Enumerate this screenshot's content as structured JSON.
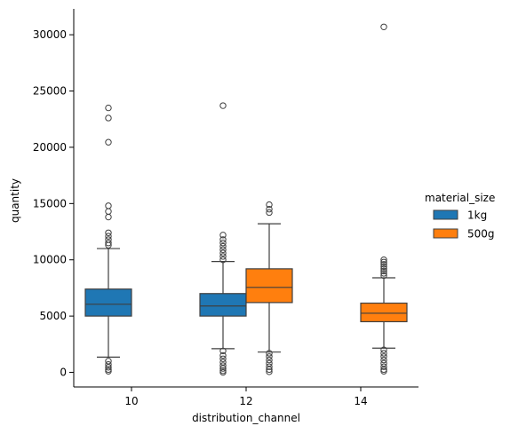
{
  "chart_data": {
    "type": "box",
    "xlabel": "distribution_channel",
    "ylabel": "quantity",
    "categories": [
      "10",
      "12",
      "14"
    ],
    "ylim": [
      -1300,
      32300
    ],
    "yticks": [
      0,
      5000,
      10000,
      15000,
      20000,
      25000,
      30000
    ],
    "grid": false,
    "legend": {
      "title": "material_size",
      "placement": "right"
    },
    "series": [
      {
        "name": "1kg",
        "color": "#1f77b4",
        "boxes": [
          {
            "category": "10",
            "whisker_low": 1350,
            "q1": 5000,
            "median": 6050,
            "q3": 7400,
            "whisker_high": 11000,
            "outliers": [
              23500,
              22600,
              20450,
              14800,
              14300,
              13800,
              12400,
              12100,
              11800,
              11500,
              11300,
              1000,
              700,
              450,
              250,
              100
            ]
          },
          {
            "category": "12",
            "whisker_low": 2100,
            "q1": 5000,
            "median": 5900,
            "q3": 7000,
            "whisker_high": 9850,
            "outliers": [
              23700,
              12200,
              11800,
              11500,
              11200,
              10900,
              10600,
              10300,
              10000,
              1900,
              1500,
              1200,
              900,
              600,
              350,
              150,
              0
            ]
          }
        ]
      },
      {
        "name": "500g",
        "color": "#ff7f0e",
        "boxes": [
          {
            "category": "12",
            "whisker_low": 1800,
            "q1": 6200,
            "median": 7550,
            "q3": 9200,
            "whisker_high": 13200,
            "outliers": [
              14900,
              14500,
              14200,
              1700,
              1400,
              1100,
              800,
              500,
              250,
              50
            ]
          },
          {
            "category": "14",
            "whisker_low": 2150,
            "q1": 4500,
            "median": 5250,
            "q3": 6150,
            "whisker_high": 8400,
            "outliers": [
              30700,
              10000,
              9800,
              9600,
              9400,
              9200,
              9000,
              8800,
              8600,
              2000,
              1700,
              1400,
              1100,
              800,
              500,
              250,
              100
            ]
          }
        ]
      }
    ]
  }
}
